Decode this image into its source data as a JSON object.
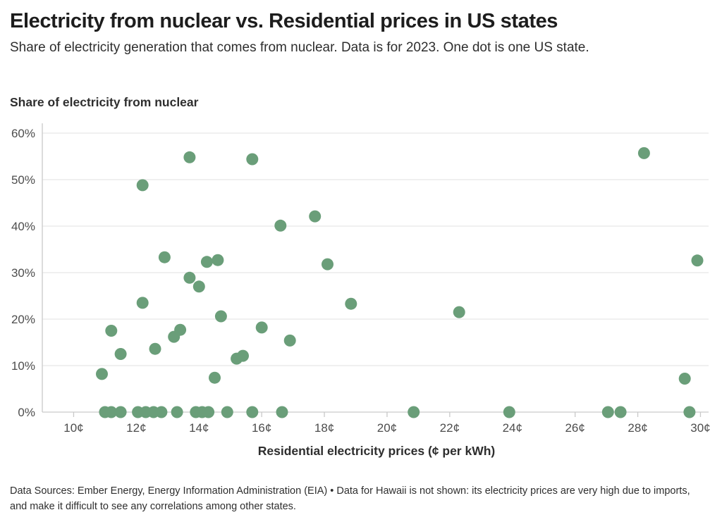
{
  "header": {
    "title": "Electricity from nuclear vs. Residential prices in US states",
    "subtitle": "Share of electricity generation that comes from nuclear. Data is for 2023. One dot is one US state."
  },
  "footer": {
    "text": "Data Sources: Ember Energy, Energy Information Administration (EIA) • Data for Hawaii is not shown: its electricity prices are very high due to imports, and make it difficult to see any correlations among other states."
  },
  "chart_data": {
    "type": "scatter",
    "title": "Electricity from nuclear vs. Residential prices in US states",
    "xlabel": "Residential electricity prices (¢ per kWh)",
    "ylabel": "Share of electricity from nuclear",
    "xlim": [
      9,
      30.3
    ],
    "ylim": [
      0,
      61.5
    ],
    "grid": "horizontal",
    "x_ticks": [
      {
        "value": 10,
        "label": "10¢"
      },
      {
        "value": 12,
        "label": "12¢"
      },
      {
        "value": 14,
        "label": "14¢"
      },
      {
        "value": 16,
        "label": "16¢"
      },
      {
        "value": 18,
        "label": "18¢"
      },
      {
        "value": 20,
        "label": "20¢"
      },
      {
        "value": 22,
        "label": "22¢"
      },
      {
        "value": 24,
        "label": "24¢"
      },
      {
        "value": 26,
        "label": "26¢"
      },
      {
        "value": 28,
        "label": "28¢"
      },
      {
        "value": 30,
        "label": "30¢"
      }
    ],
    "y_ticks": [
      {
        "value": 0,
        "label": "0%"
      },
      {
        "value": 10,
        "label": "10%"
      },
      {
        "value": 20,
        "label": "20%"
      },
      {
        "value": 30,
        "label": "30%"
      },
      {
        "value": 40,
        "label": "40%"
      },
      {
        "value": 50,
        "label": "50%"
      },
      {
        "value": 60,
        "label": "60%"
      }
    ],
    "colors": {
      "dot": "#6a9e79",
      "gridline": "#e8e8e8",
      "axis": "#c9c9c9",
      "tick_label": "#4d4d4d"
    },
    "points": [
      [
        10.9,
        8.2
      ],
      [
        11.2,
        17.5
      ],
      [
        11.5,
        12.5
      ],
      [
        12.2,
        48.8
      ],
      [
        12.2,
        23.5
      ],
      [
        12.6,
        13.6
      ],
      [
        12.9,
        33.3
      ],
      [
        13.2,
        16.2
      ],
      [
        13.4,
        17.7
      ],
      [
        13.7,
        54.8
      ],
      [
        13.7,
        28.9
      ],
      [
        14.0,
        27.0
      ],
      [
        14.25,
        32.3
      ],
      [
        14.6,
        32.7
      ],
      [
        14.5,
        7.4
      ],
      [
        14.7,
        20.6
      ],
      [
        15.2,
        11.5
      ],
      [
        15.4,
        12.1
      ],
      [
        15.7,
        54.4
      ],
      [
        16.0,
        18.2
      ],
      [
        16.6,
        40.1
      ],
      [
        16.9,
        15.4
      ],
      [
        17.7,
        42.1
      ],
      [
        18.1,
        31.8
      ],
      [
        18.85,
        23.3
      ],
      [
        22.3,
        21.5
      ],
      [
        28.2,
        55.7
      ],
      [
        29.9,
        32.6
      ],
      [
        29.5,
        7.2
      ],
      [
        11.0,
        0
      ],
      [
        11.2,
        0
      ],
      [
        11.5,
        0
      ],
      [
        12.05,
        0
      ],
      [
        12.3,
        0
      ],
      [
        12.55,
        0
      ],
      [
        12.8,
        0
      ],
      [
        13.3,
        0
      ],
      [
        13.9,
        0
      ],
      [
        14.1,
        0
      ],
      [
        14.3,
        0
      ],
      [
        14.9,
        0
      ],
      [
        15.7,
        0
      ],
      [
        16.65,
        0
      ],
      [
        20.85,
        0
      ],
      [
        23.9,
        0
      ],
      [
        27.05,
        0
      ],
      [
        27.45,
        0
      ],
      [
        29.65,
        0
      ]
    ]
  }
}
